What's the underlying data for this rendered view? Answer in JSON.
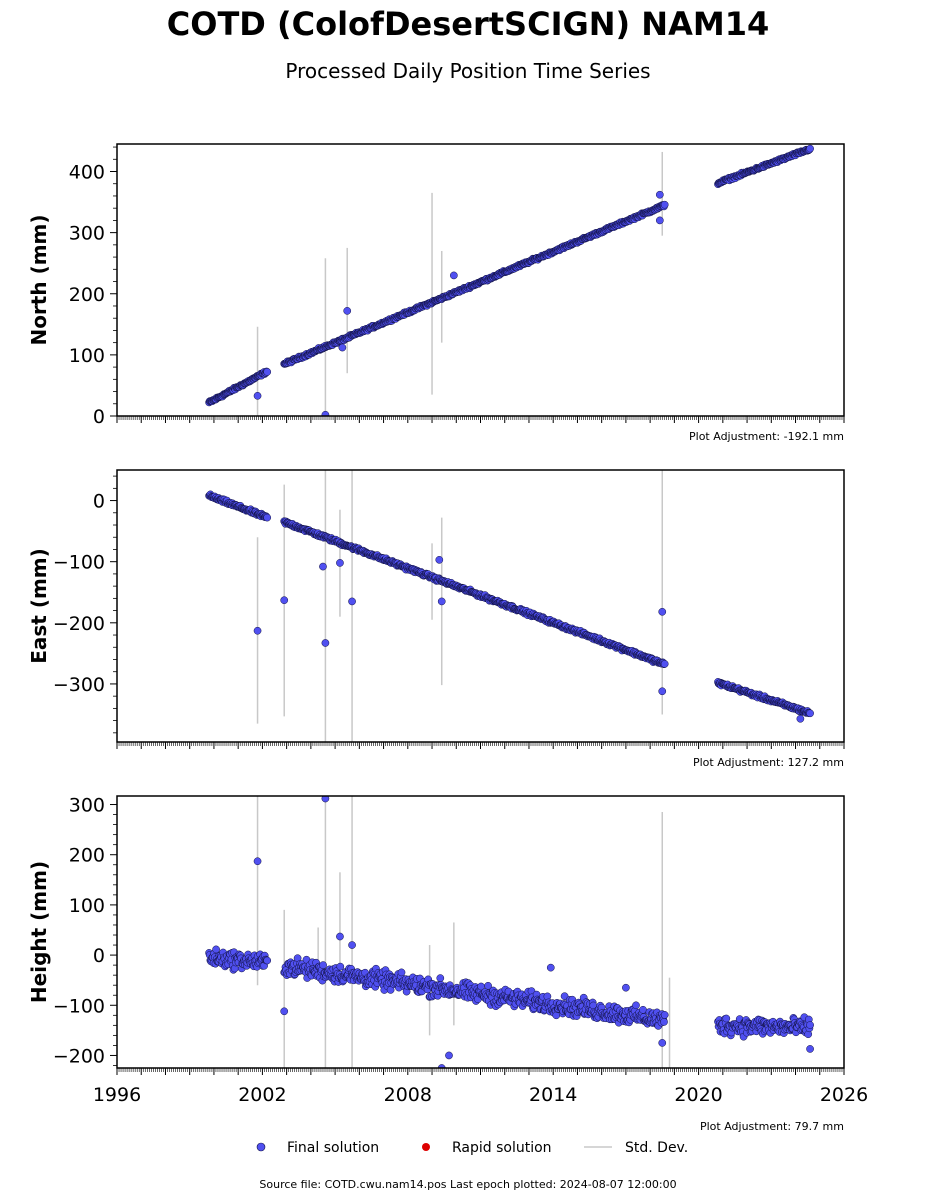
{
  "title": "COTD (ColofDesertSCIGN) NAM14",
  "subtitle": "Processed Daily Position Time Series",
  "footer": "Source file: COTD.cwu.nam14.pos  Last epoch plotted: 2024-08-07 12:00:00",
  "legend": {
    "final": "Final solution",
    "rapid": "Rapid solution",
    "std": "Std. Dev."
  },
  "colors": {
    "final": "#5050f0",
    "final_edge": "#101040",
    "rapid": "#dd0000",
    "std": "#c8c8c8"
  },
  "chart_data": [
    {
      "type": "scatter",
      "ylabel": "North (mm)",
      "note": "Plot Adjustment: -192.1 mm",
      "xlim": [
        1996,
        2026
      ],
      "ylim": [
        0,
        445
      ],
      "yticks": [
        0,
        100,
        200,
        300,
        400
      ],
      "ytick_labels": [
        "0",
        "100",
        "200",
        "300",
        "400"
      ],
      "segments": [
        {
          "from": [
            1999.8,
            22
          ],
          "to": [
            2002.2,
            73
          ],
          "spread": 3
        },
        {
          "from": [
            2002.9,
            85
          ],
          "to": [
            2018.6,
            345
          ],
          "spread": 3
        },
        {
          "from": [
            2020.8,
            381
          ],
          "to": [
            2024.6,
            437
          ],
          "spread": 3
        }
      ],
      "outliers": [
        [
          2001.8,
          33
        ],
        [
          2004.6,
          2
        ],
        [
          2005.5,
          172
        ],
        [
          2005.3,
          112
        ],
        [
          2009.9,
          230
        ],
        [
          2018.4,
          320
        ],
        [
          2018.4,
          362
        ]
      ],
      "stddev": [
        [
          2001.8,
          0,
          146
        ],
        [
          2004.6,
          0,
          258
        ],
        [
          2005.5,
          70,
          275
        ],
        [
          2009.0,
          35,
          365
        ],
        [
          2009.4,
          120,
          270
        ],
        [
          2018.5,
          295,
          432
        ]
      ]
    },
    {
      "type": "scatter",
      "ylabel": "East (mm)",
      "note": "Plot Adjustment: 127.2 mm",
      "xlim": [
        1996,
        2026
      ],
      "ylim": [
        -395,
        50
      ],
      "yticks": [
        -300,
        -200,
        -100,
        0
      ],
      "ytick_labels": [
        "−300",
        "−200",
        "−100",
        "0"
      ],
      "segments": [
        {
          "from": [
            1999.8,
            8
          ],
          "to": [
            2002.2,
            -28
          ],
          "spread": 4
        },
        {
          "from": [
            2002.9,
            -35
          ],
          "to": [
            2018.6,
            -268
          ],
          "spread": 4
        },
        {
          "from": [
            2020.8,
            -298
          ],
          "to": [
            2024.6,
            -348
          ],
          "spread": 4
        }
      ],
      "outliers": [
        [
          2001.8,
          -213
        ],
        [
          2002.9,
          -163
        ],
        [
          2004.5,
          -108
        ],
        [
          2004.6,
          -233
        ],
        [
          2005.2,
          -102
        ],
        [
          2005.7,
          -165
        ],
        [
          2009.3,
          -97
        ],
        [
          2009.4,
          -165
        ],
        [
          2018.5,
          -182
        ],
        [
          2018.5,
          -312
        ],
        [
          2024.2,
          -357
        ]
      ],
      "stddev": [
        [
          2001.8,
          -365,
          -60
        ],
        [
          2002.9,
          -353,
          26
        ],
        [
          2004.6,
          -395,
          50
        ],
        [
          2005.2,
          -190,
          -15
        ],
        [
          2005.7,
          -395,
          50
        ],
        [
          2009.0,
          -195,
          -70
        ],
        [
          2009.4,
          -302,
          -28
        ],
        [
          2018.5,
          -350,
          50
        ]
      ]
    },
    {
      "type": "scatter",
      "ylabel": "Height (mm)",
      "note": "Plot Adjustment: 79.7 mm",
      "xlim": [
        1996,
        2026
      ],
      "xticks": [
        1996,
        2002,
        2008,
        2014,
        2020,
        2026
      ],
      "xtick_labels": [
        "1996",
        "2002",
        "2008",
        "2014",
        "2020",
        "2026"
      ],
      "ylim": [
        -225,
        317
      ],
      "yticks": [
        -200,
        -100,
        0,
        100,
        200,
        300
      ],
      "ytick_labels": [
        "−200",
        "−100",
        "0",
        "100",
        "200",
        "300"
      ],
      "segments": [
        {
          "from": [
            1999.8,
            -5
          ],
          "to": [
            2002.2,
            -15
          ],
          "spread": 24
        },
        {
          "from": [
            2002.9,
            -22
          ],
          "to": [
            2018.6,
            -130
          ],
          "spread": 26
        },
        {
          "from": [
            2020.8,
            -140
          ],
          "to": [
            2024.6,
            -145
          ],
          "spread": 26
        }
      ],
      "outliers": [
        [
          2001.8,
          187
        ],
        [
          2002.9,
          -112
        ],
        [
          2004.6,
          312
        ],
        [
          2005.2,
          37
        ],
        [
          2005.7,
          20
        ],
        [
          2009.4,
          -225
        ],
        [
          2009.7,
          -200
        ],
        [
          2013.9,
          -25
        ],
        [
          2017.0,
          -65
        ],
        [
          2018.5,
          -175
        ],
        [
          2024.6,
          -187
        ]
      ],
      "stddev": [
        [
          2001.8,
          -60,
          317
        ],
        [
          2002.9,
          -225,
          90
        ],
        [
          2004.6,
          -225,
          317
        ],
        [
          2004.3,
          -40,
          55
        ],
        [
          2005.2,
          -60,
          165
        ],
        [
          2005.7,
          -225,
          317
        ],
        [
          2008.9,
          -160,
          20
        ],
        [
          2009.9,
          -140,
          65
        ],
        [
          2018.5,
          -225,
          285
        ],
        [
          2018.8,
          -225,
          -45
        ]
      ]
    }
  ]
}
